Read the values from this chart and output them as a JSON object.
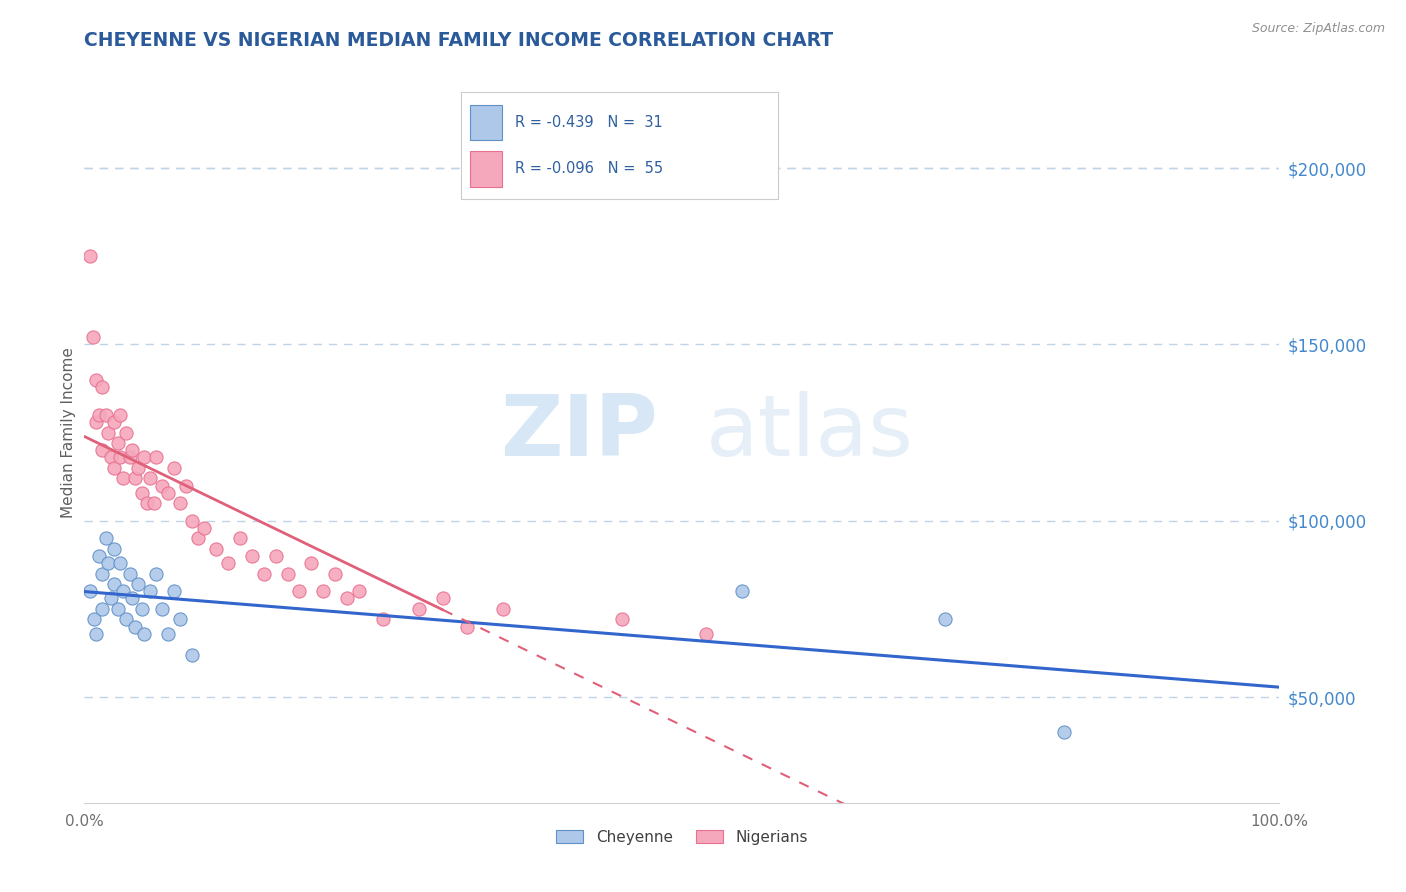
{
  "title": "CHEYENNE VS NIGERIAN MEDIAN FAMILY INCOME CORRELATION CHART",
  "source_text": "Source: ZipAtlas.com",
  "ylabel": "Median Family Income",
  "xlim": [
    0,
    1.0
  ],
  "ylim": [
    20000,
    230000
  ],
  "ytick_positions": [
    50000,
    100000,
    150000,
    200000
  ],
  "ytick_labels": [
    "$50,000",
    "$100,000",
    "$150,000",
    "$200,000"
  ],
  "cheyenne_color": "#adc8e8",
  "nigerian_color": "#f5a8bc",
  "cheyenne_edge_color": "#6090c8",
  "nigerian_edge_color": "#e87090",
  "cheyenne_line_color": "#3366cc",
  "nigerian_line_color": "#e0607a",
  "legend_R_cheyenne": "R = -0.439",
  "legend_N_cheyenne": "N =  31",
  "legend_R_nigerian": "R = -0.096",
  "legend_N_nigerian": "N =  55",
  "legend_label_cheyenne": "Cheyenne",
  "legend_label_nigerian": "Nigerians",
  "watermark_zip": "ZIP",
  "watermark_atlas": "atlas",
  "grid_color": "#c0d4e8",
  "title_color": "#2a5a9a",
  "ytick_color": "#4488cc",
  "axis_label_color": "#606060",
  "background_color": "#ffffff",
  "cheyenne_x": [
    0.005,
    0.008,
    0.01,
    0.012,
    0.015,
    0.015,
    0.018,
    0.02,
    0.022,
    0.025,
    0.025,
    0.028,
    0.03,
    0.032,
    0.035,
    0.038,
    0.04,
    0.042,
    0.045,
    0.048,
    0.05,
    0.055,
    0.06,
    0.065,
    0.07,
    0.075,
    0.08,
    0.09,
    0.55,
    0.72,
    0.82
  ],
  "cheyenne_y": [
    80000,
    72000,
    68000,
    90000,
    85000,
    75000,
    95000,
    88000,
    78000,
    92000,
    82000,
    75000,
    88000,
    80000,
    72000,
    85000,
    78000,
    70000,
    82000,
    75000,
    68000,
    80000,
    85000,
    75000,
    68000,
    80000,
    72000,
    62000,
    80000,
    72000,
    40000
  ],
  "nigerian_x": [
    0.005,
    0.007,
    0.01,
    0.01,
    0.012,
    0.015,
    0.015,
    0.018,
    0.02,
    0.022,
    0.025,
    0.025,
    0.028,
    0.03,
    0.03,
    0.032,
    0.035,
    0.038,
    0.04,
    0.042,
    0.045,
    0.048,
    0.05,
    0.052,
    0.055,
    0.058,
    0.06,
    0.065,
    0.07,
    0.075,
    0.08,
    0.085,
    0.09,
    0.095,
    0.1,
    0.11,
    0.12,
    0.13,
    0.14,
    0.15,
    0.16,
    0.17,
    0.18,
    0.19,
    0.2,
    0.21,
    0.22,
    0.23,
    0.25,
    0.28,
    0.3,
    0.32,
    0.35,
    0.45,
    0.52
  ],
  "nigerian_y": [
    175000,
    152000,
    140000,
    128000,
    130000,
    138000,
    120000,
    130000,
    125000,
    118000,
    128000,
    115000,
    122000,
    130000,
    118000,
    112000,
    125000,
    118000,
    120000,
    112000,
    115000,
    108000,
    118000,
    105000,
    112000,
    105000,
    118000,
    110000,
    108000,
    115000,
    105000,
    110000,
    100000,
    95000,
    98000,
    92000,
    88000,
    95000,
    90000,
    85000,
    90000,
    85000,
    80000,
    88000,
    80000,
    85000,
    78000,
    80000,
    72000,
    75000,
    78000,
    70000,
    75000,
    72000,
    68000
  ]
}
